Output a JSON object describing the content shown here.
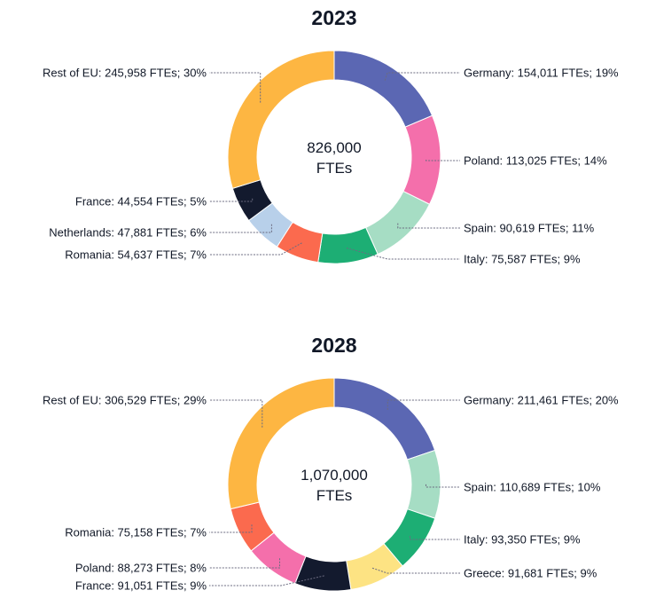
{
  "chart_data": [
    {
      "type": "pie",
      "style": "donut",
      "title": "2023",
      "center_value": "826,000",
      "center_unit": "FTEs",
      "slices": [
        {
          "name": "Germany",
          "value": 154011,
          "percent": 19,
          "label": "Germany: 154,011 FTEs; 19%",
          "color": "#5b67b3"
        },
        {
          "name": "Poland",
          "value": 113025,
          "percent": 14,
          "label": "Poland: 113,025 FTEs; 14%",
          "color": "#f46fab"
        },
        {
          "name": "Spain",
          "value": 90619,
          "percent": 11,
          "label": "Spain: 90,619 FTEs; 11%",
          "color": "#a6ddc4"
        },
        {
          "name": "Italy",
          "value": 75587,
          "percent": 9,
          "label": "Italy: 75,587 FTEs; 9%",
          "color": "#1dae74"
        },
        {
          "name": "Romania",
          "value": 54637,
          "percent": 7,
          "label": "Romania: 54,637 FTEs; 7%",
          "color": "#fb6a4e"
        },
        {
          "name": "Netherlands",
          "value": 47881,
          "percent": 6,
          "label": "Netherlands: 47,881 FTEs; 6%",
          "color": "#b8d0ea"
        },
        {
          "name": "France",
          "value": 44554,
          "percent": 5,
          "label": "France: 44,554 FTEs; 5%",
          "color": "#131a2e"
        },
        {
          "name": "Rest of EU",
          "value": 245958,
          "percent": 30,
          "label": "Rest of EU: 245,958 FTEs; 30%",
          "color": "#fdb642"
        }
      ]
    },
    {
      "type": "pie",
      "style": "donut",
      "title": "2028",
      "center_value": "1,070,000",
      "center_unit": "FTEs",
      "slices": [
        {
          "name": "Germany",
          "value": 211461,
          "percent": 20,
          "label": "Germany: 211,461 FTEs; 20%",
          "color": "#5b67b3"
        },
        {
          "name": "Spain",
          "value": 110689,
          "percent": 10,
          "label": "Spain: 110,689 FTEs; 10%",
          "color": "#a6ddc4"
        },
        {
          "name": "Italy",
          "value": 93350,
          "percent": 9,
          "label": "Italy: 93,350 FTEs; 9%",
          "color": "#1dae74"
        },
        {
          "name": "Greece",
          "value": 91681,
          "percent": 9,
          "label": "Greece: 91,681 FTEs; 9%",
          "color": "#fde383"
        },
        {
          "name": "France",
          "value": 91051,
          "percent": 9,
          "label": "France: 91,051 FTEs; 9%",
          "color": "#131a2e"
        },
        {
          "name": "Poland",
          "value": 88273,
          "percent": 8,
          "label": "Poland: 88,273 FTEs; 8%",
          "color": "#f46fab"
        },
        {
          "name": "Romania",
          "value": 75158,
          "percent": 7,
          "label": "Romania: 75,158 FTEs; 7%",
          "color": "#fb6a4e"
        },
        {
          "name": "Rest of EU",
          "value": 306529,
          "percent": 29,
          "label": "Rest of EU: 306,529 FTEs; 29%",
          "color": "#fdb642"
        }
      ]
    }
  ]
}
